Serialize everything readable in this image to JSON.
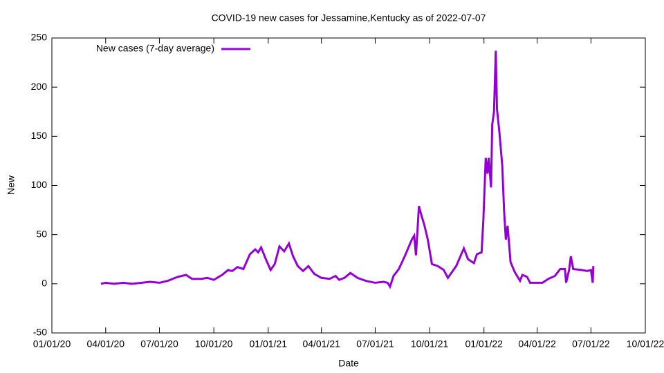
{
  "chart_data": {
    "type": "line",
    "title": "COVID-19 new cases for Jessamine,Kentucky as of 2022-07-07",
    "x_label": "Date",
    "y_label": "New",
    "x": [
      "2020-03-24",
      "2020-04-01",
      "2020-04-15",
      "2020-05-01",
      "2020-05-15",
      "2020-06-01",
      "2020-06-15",
      "2020-07-01",
      "2020-07-15",
      "2020-08-01",
      "2020-08-15",
      "2020-08-25",
      "2020-09-10",
      "2020-09-20",
      "2020-10-01",
      "2020-10-15",
      "2020-10-25",
      "2020-11-01",
      "2020-11-10",
      "2020-11-20",
      "2020-12-01",
      "2020-12-10",
      "2020-12-15",
      "2020-12-20",
      "2020-12-28",
      "2021-01-05",
      "2021-01-12",
      "2021-01-20",
      "2021-01-28",
      "2021-02-05",
      "2021-02-12",
      "2021-02-20",
      "2021-03-01",
      "2021-03-10",
      "2021-03-20",
      "2021-04-01",
      "2021-04-15",
      "2021-04-25",
      "2021-05-01",
      "2021-05-10",
      "2021-05-20",
      "2021-06-01",
      "2021-06-15",
      "2021-07-01",
      "2021-07-15",
      "2021-07-22",
      "2021-07-26",
      "2021-08-01",
      "2021-08-10",
      "2021-08-20",
      "2021-09-01",
      "2021-09-05",
      "2021-09-08",
      "2021-09-13",
      "2021-09-17",
      "2021-09-22",
      "2021-09-28",
      "2021-10-05",
      "2021-10-15",
      "2021-10-25",
      "2021-11-01",
      "2021-11-15",
      "2021-11-28",
      "2021-12-05",
      "2021-12-15",
      "2021-12-20",
      "2021-12-28",
      "2021-12-31",
      "2022-01-04",
      "2022-01-07",
      "2022-01-09",
      "2022-01-13",
      "2022-01-15",
      "2022-01-18",
      "2022-01-21",
      "2022-01-23",
      "2022-01-27",
      "2022-02-01",
      "2022-02-04",
      "2022-02-07",
      "2022-02-10",
      "2022-02-15",
      "2022-02-22",
      "2022-03-03",
      "2022-03-07",
      "2022-03-15",
      "2022-03-20",
      "2022-04-10",
      "2022-04-20",
      "2022-05-01",
      "2022-05-10",
      "2022-05-18",
      "2022-05-20",
      "2022-05-25",
      "2022-05-28",
      "2022-06-01",
      "2022-06-15",
      "2022-06-25",
      "2022-07-01",
      "2022-07-04",
      "2022-07-05"
    ],
    "series": [
      {
        "name": "New cases (7-day average)",
        "color": "#9400d3",
        "values": [
          0,
          1,
          0,
          1,
          0,
          1,
          2,
          1,
          3,
          7,
          9,
          5,
          5,
          6,
          4,
          9,
          14,
          13,
          17,
          15,
          30,
          35,
          32,
          37,
          25,
          14,
          20,
          38,
          33,
          41,
          28,
          18,
          13,
          18,
          10,
          6,
          5,
          8,
          4,
          6,
          11,
          6,
          3,
          1,
          2,
          1,
          -3,
          8,
          15,
          28,
          45,
          49,
          29,
          79,
          70,
          60,
          45,
          20,
          18,
          14,
          6,
          18,
          36,
          25,
          21,
          30,
          32,
          65,
          128,
          112,
          128,
          98,
          162,
          175,
          237,
          178,
          155,
          120,
          75,
          45,
          59,
          22,
          12,
          3,
          9,
          7,
          1,
          1,
          5,
          8,
          15,
          15,
          1,
          14,
          28,
          15,
          14,
          13,
          14,
          1,
          18
        ]
      }
    ],
    "xlim": [
      "2020-01-01",
      "2022-10-01"
    ],
    "xticks": [
      {
        "value": "2020-01-01",
        "label": "01/01/20"
      },
      {
        "value": "2020-04-01",
        "label": "04/01/20"
      },
      {
        "value": "2020-07-01",
        "label": "07/01/20"
      },
      {
        "value": "2020-10-01",
        "label": "10/01/20"
      },
      {
        "value": "2021-01-01",
        "label": "01/01/21"
      },
      {
        "value": "2021-04-01",
        "label": "04/01/21"
      },
      {
        "value": "2021-07-01",
        "label": "07/01/21"
      },
      {
        "value": "2021-10-01",
        "label": "10/01/21"
      },
      {
        "value": "2022-01-01",
        "label": "01/01/22"
      },
      {
        "value": "2022-04-01",
        "label": "04/01/22"
      },
      {
        "value": "2022-07-01",
        "label": "07/01/22"
      },
      {
        "value": "2022-10-01",
        "label": "10/01/22"
      }
    ],
    "ylim": [
      -50,
      250
    ],
    "yticks": [
      -50,
      0,
      50,
      100,
      150,
      200,
      250
    ],
    "legend": "top-left"
  }
}
